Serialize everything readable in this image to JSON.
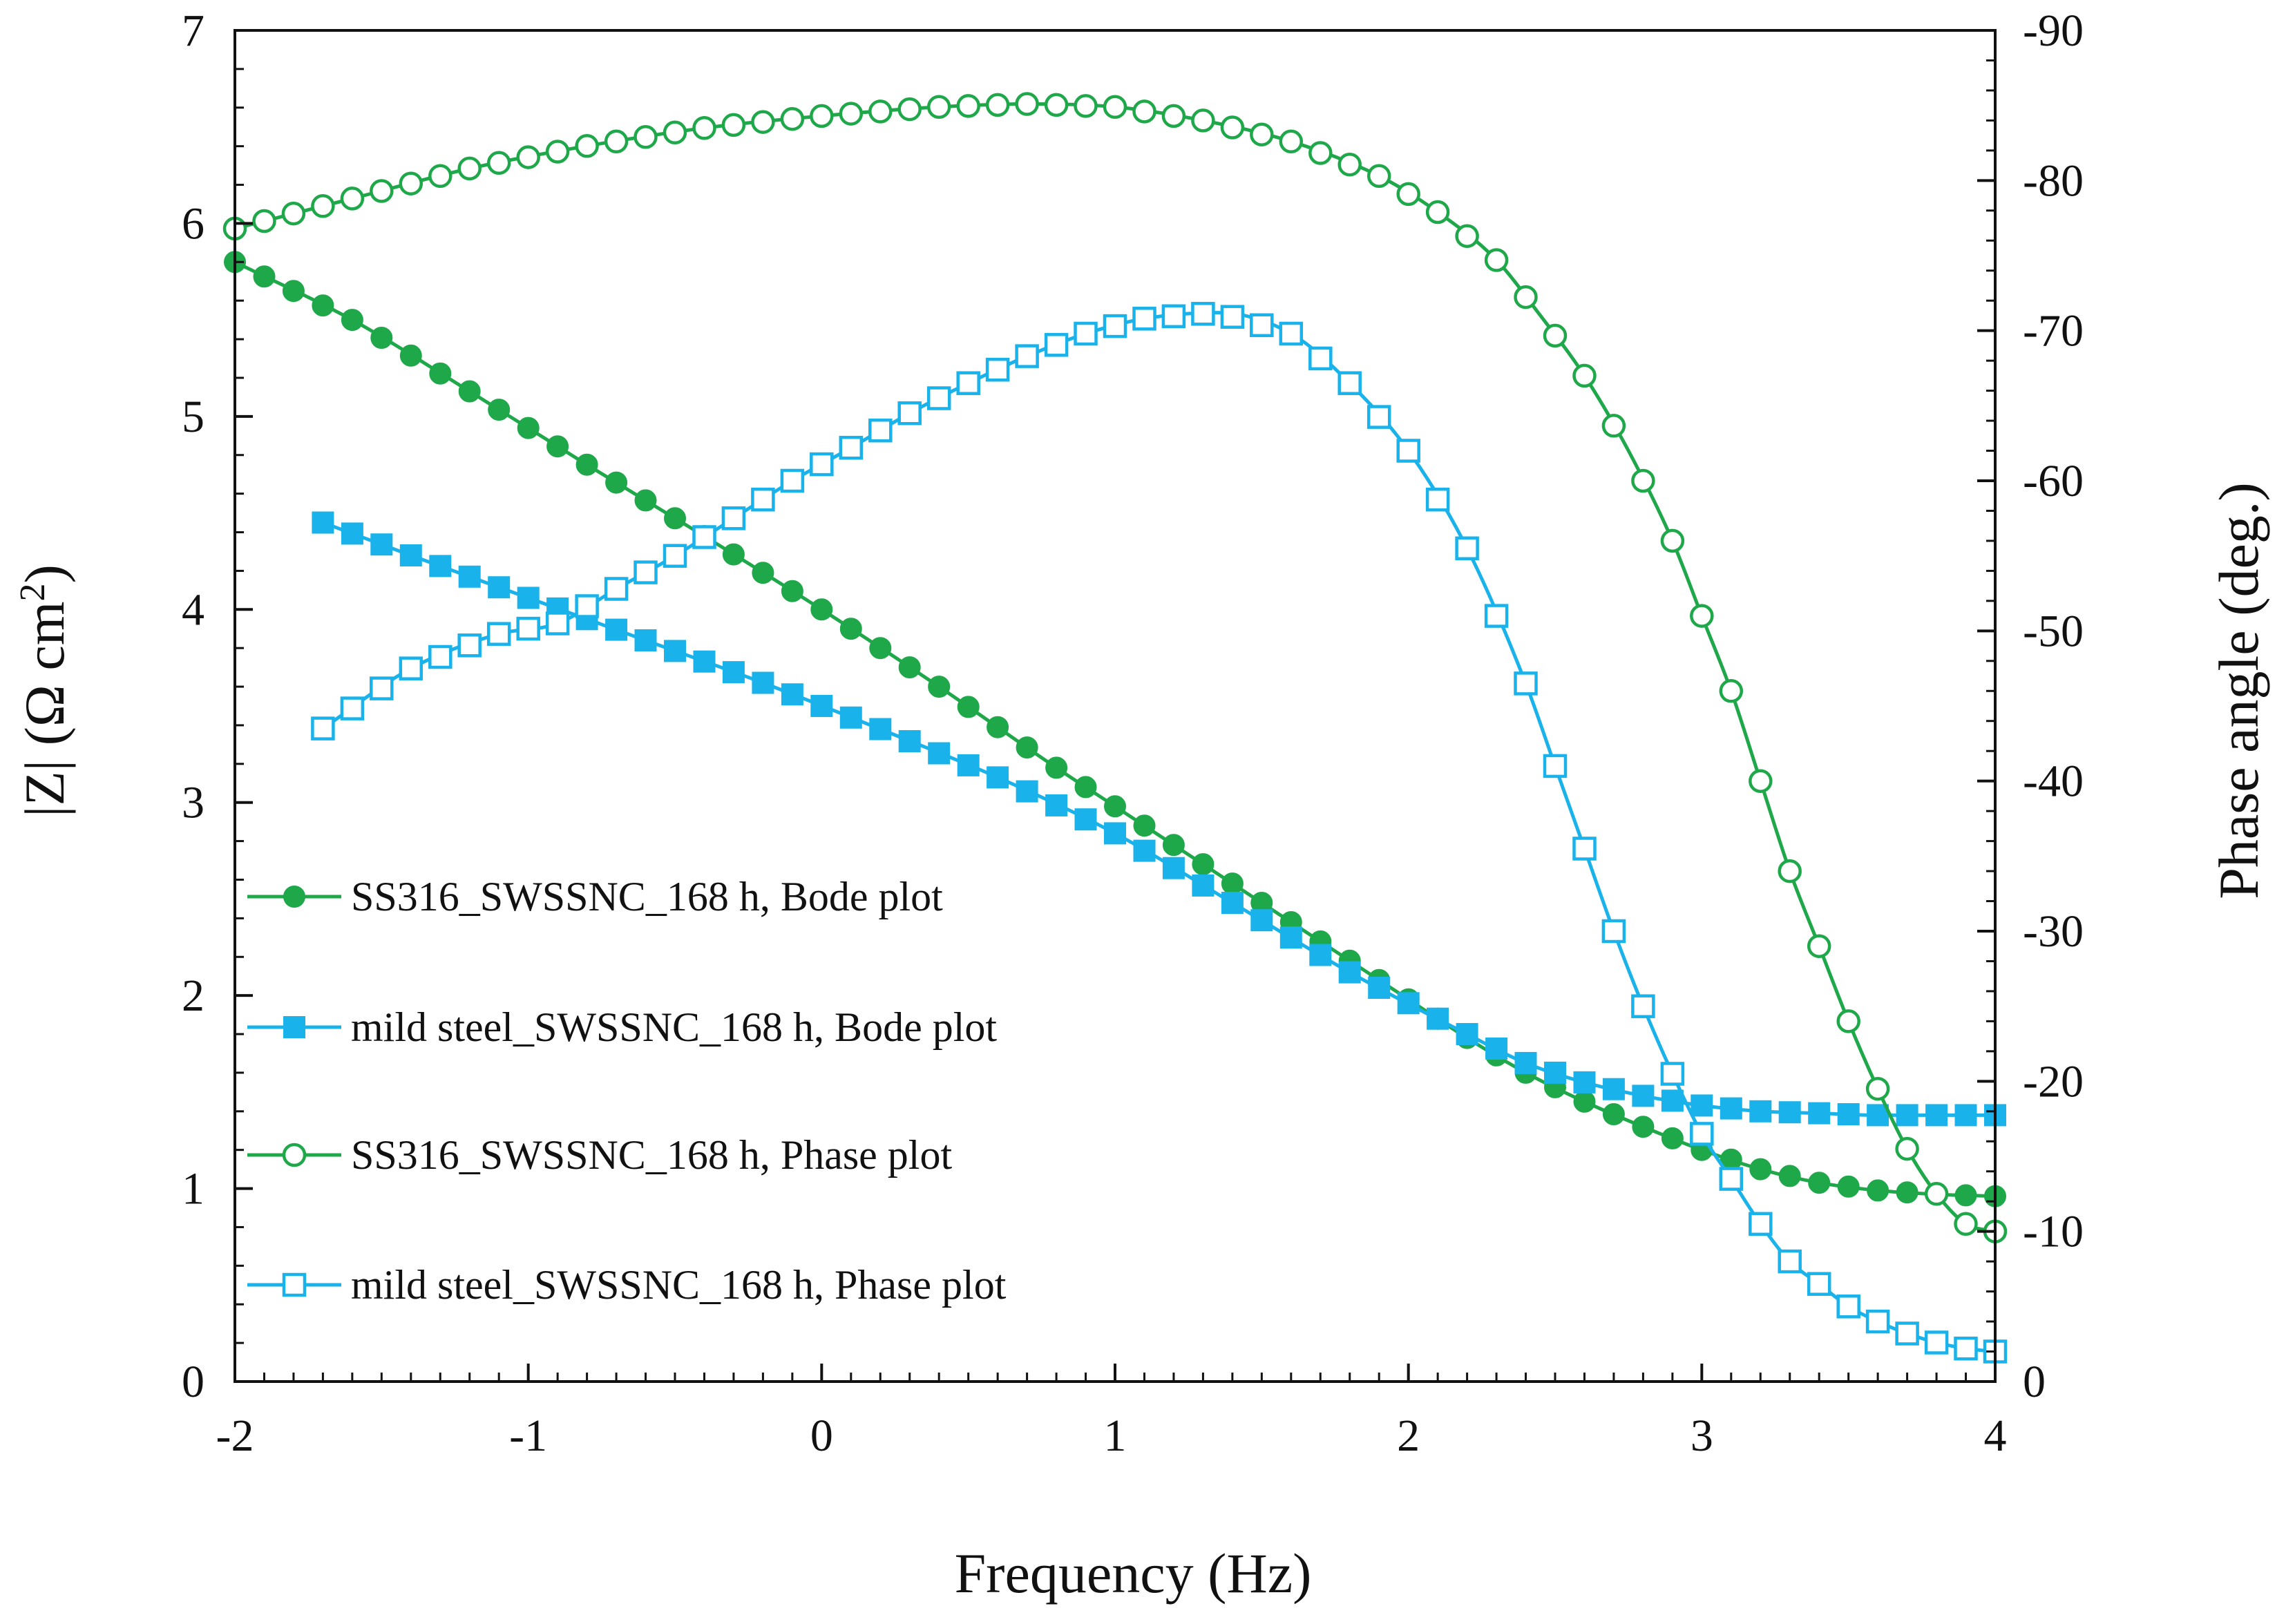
{
  "chart_data": {
    "type": "line",
    "title": "",
    "xlabel": "Frequency (Hz)",
    "ylabel_left": "|Z| (Ω cm²)",
    "ylabel_left_parts": {
      "main": "|Z| (Ω cm",
      "sup": "2",
      "close": ")"
    },
    "ylabel_right": "Phase angle (deg.)",
    "xlim": [
      -2,
      4
    ],
    "ylim_left": [
      0,
      7
    ],
    "ylim_right": [
      0,
      -90
    ],
    "x_ticks": [
      "-2",
      "-1",
      "0",
      "1",
      "2",
      "3",
      "4"
    ],
    "y_left_ticks": [
      "0",
      "1",
      "2",
      "3",
      "4",
      "5",
      "6",
      "7"
    ],
    "y_right_ticks": [
      "0",
      "-10",
      "-20",
      "-30",
      "-40",
      "-50",
      "-60",
      "-70",
      "-80",
      "-90"
    ],
    "grid": false,
    "legend_position": "left-middle",
    "colors": {
      "ss316": "#1fa84a",
      "mild_steel": "#1ab2ea"
    },
    "series": [
      {
        "name": "SS316_SWSSNC_168 h, Bode plot",
        "axis": "left",
        "color": "#1fa84a",
        "marker": "circle-filled",
        "x": [
          -2.0,
          -1.6,
          -1.2,
          -0.8,
          -0.4,
          0.0,
          0.4,
          0.8,
          1.0,
          1.2,
          1.4,
          1.6,
          1.8,
          2.0,
          2.2,
          2.4,
          2.6,
          2.8,
          3.0,
          3.2,
          3.4,
          3.6,
          3.8,
          4.0
        ],
        "values": [
          5.8,
          5.5,
          5.13,
          4.75,
          4.38,
          4.0,
          3.6,
          3.18,
          2.98,
          2.78,
          2.58,
          2.38,
          2.18,
          1.98,
          1.78,
          1.6,
          1.45,
          1.32,
          1.2,
          1.1,
          1.03,
          0.99,
          0.97,
          0.96
        ]
      },
      {
        "name": "mild steel_SWSSNC_168 h, Bode plot",
        "axis": "left",
        "color": "#1ab2ea",
        "marker": "square-filled",
        "x": [
          -1.7,
          -1.4,
          -1.0,
          -0.6,
          -0.2,
          0.2,
          0.6,
          1.0,
          1.4,
          1.8,
          2.2,
          2.4,
          2.6,
          2.8,
          3.0,
          3.2,
          3.4,
          3.6,
          3.8,
          4.0
        ],
        "values": [
          4.45,
          4.28,
          4.06,
          3.84,
          3.62,
          3.38,
          3.13,
          2.84,
          2.48,
          2.12,
          1.8,
          1.65,
          1.55,
          1.48,
          1.43,
          1.4,
          1.39,
          1.38,
          1.38,
          1.38
        ]
      },
      {
        "name": "SS316_SWSSNC_168 h, Phase plot",
        "axis": "right",
        "color": "#1fa84a",
        "marker": "circle-open",
        "x": [
          -2.0,
          -1.6,
          -1.2,
          -0.8,
          -0.4,
          0.0,
          0.4,
          0.7,
          1.0,
          1.3,
          1.6,
          1.9,
          2.1,
          2.3,
          2.45,
          2.6,
          2.75,
          2.9,
          3.0,
          3.1,
          3.2,
          3.3,
          3.4,
          3.5,
          3.6,
          3.7,
          3.8,
          3.9,
          4.0
        ],
        "values": [
          -76.8,
          -78.8,
          -80.8,
          -82.3,
          -83.5,
          -84.3,
          -84.9,
          -85.1,
          -84.9,
          -84.0,
          -82.6,
          -80.3,
          -77.9,
          -74.7,
          -71.0,
          -67.0,
          -62.0,
          -56.0,
          -51.0,
          -46.0,
          -40.0,
          -34.0,
          -29.0,
          -24.0,
          -19.5,
          -15.5,
          -12.5,
          -10.5,
          -10.0
        ]
      },
      {
        "name": "mild steel_SWSSNC_168 h, Phase plot",
        "axis": "right",
        "color": "#1ab2ea",
        "marker": "square-open",
        "x": [
          -1.7,
          -1.4,
          -1.1,
          -0.9,
          -0.7,
          -0.5,
          -0.3,
          -0.1,
          0.1,
          0.3,
          0.5,
          0.7,
          0.9,
          1.1,
          1.35,
          1.6,
          1.8,
          2.0,
          2.2,
          2.4,
          2.5,
          2.6,
          2.7,
          2.8,
          2.9,
          3.0,
          3.1,
          3.2,
          3.3,
          3.4,
          3.5,
          3.6,
          3.7,
          3.8,
          3.9,
          4.0
        ],
        "values": [
          -43.5,
          -47.5,
          -49.8,
          -50.5,
          -52.8,
          -55.0,
          -57.5,
          -60.0,
          -62.2,
          -64.5,
          -66.5,
          -68.3,
          -69.8,
          -70.8,
          -71.2,
          -69.8,
          -66.5,
          -62.0,
          -55.5,
          -46.5,
          -41.0,
          -35.5,
          -30.0,
          -25.0,
          -20.5,
          -16.5,
          -13.5,
          -10.5,
          -8.0,
          -6.5,
          -5.0,
          -4.0,
          -3.2,
          -2.6,
          -2.2,
          -2.0
        ]
      }
    ]
  }
}
